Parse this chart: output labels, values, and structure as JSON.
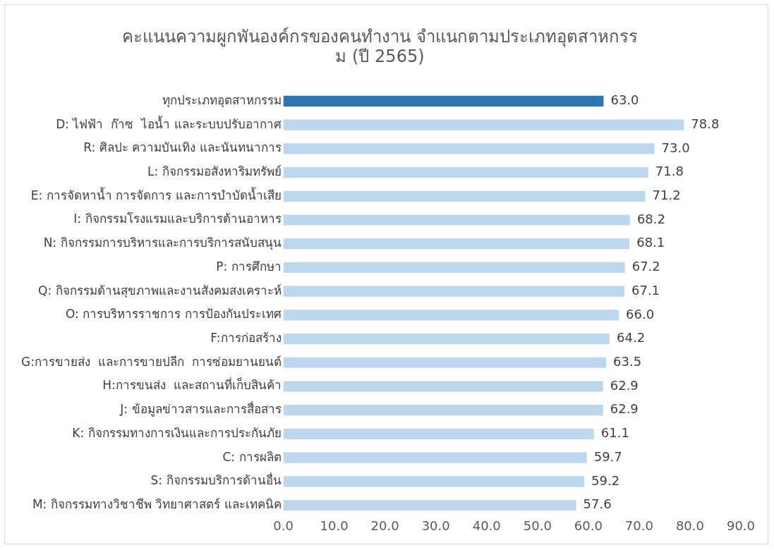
{
  "chart_data": {
    "type": "bar",
    "orientation": "horizontal",
    "title": "คะแนนความผูกพันองค์กรของคนทำงาน จำแนกตามประเภทอุตสาหกรรม (ปี 2565)",
    "categories": [
      "ทุกประเภทอุตสาหกรรม",
      "D: ไฟฟ้า  ก๊าซ  ไอน้ำ และระบบปรับอากาศ",
      "R: ศิลปะ ความบันเทิง และนันทนาการ",
      "L: กิจกรรมอสังหาริมทรัพย์",
      "E: การจัดหาน้ำ การจัดการ และการบำบัดน้ำเสีย",
      "I: กิจกรรมโรงแรมและบริการด้านอาหาร",
      "N: กิจกรรมการบริหารและการบริการสนับสนุน",
      "P: การศึกษา",
      "Q: กิจกรรมด้านสุขภาพและงานสังคมสงเคราะห์",
      "O: การบริหารราชการ การป้องกันประเทศ",
      "F:การก่อสร้าง",
      "G:การขายส่ง  และการขายปลีก  การซ่อมยานยนต์",
      "H:การขนส่ง  และสถานที่เก็บสินค้า",
      "J: ข้อมูลข่าวสารและการสื่อสาร",
      "K: กิจกรรมทางการเงินและการประกันภัย",
      "C: การผลิต",
      "S: กิจกรรมบริการด้านอื่น",
      "M: กิจกรรมทางวิชาชีพ วิทยาศาสตร์ และเทคนิค"
    ],
    "values": [
      63.0,
      78.8,
      73.0,
      71.8,
      71.2,
      68.2,
      68.1,
      67.2,
      67.1,
      66.0,
      64.2,
      63.5,
      62.9,
      62.9,
      61.1,
      59.7,
      59.2,
      57.6
    ],
    "value_labels": [
      "63.0",
      "78.8",
      "73.0",
      "71.8",
      "71.2",
      "68.2",
      "68.1",
      "67.2",
      "67.1",
      "66.0",
      "64.2",
      "63.5",
      "62.9",
      "62.9",
      "61.1",
      "59.7",
      "59.2",
      "57.6"
    ],
    "colors": [
      "#2e75b6",
      "#bdd7ee",
      "#bdd7ee",
      "#bdd7ee",
      "#bdd7ee",
      "#bdd7ee",
      "#bdd7ee",
      "#bdd7ee",
      "#bdd7ee",
      "#bdd7ee",
      "#bdd7ee",
      "#bdd7ee",
      "#bdd7ee",
      "#bdd7ee",
      "#bdd7ee",
      "#bdd7ee",
      "#bdd7ee",
      "#bdd7ee"
    ],
    "xlim": [
      0,
      90
    ],
    "xticks": [
      {
        "value": 0,
        "label": "0.0"
      },
      {
        "value": 10,
        "label": "10.0"
      },
      {
        "value": 20,
        "label": "20.0"
      },
      {
        "value": 30,
        "label": "30.0"
      },
      {
        "value": 40,
        "label": "40.0"
      },
      {
        "value": 50,
        "label": "50.0"
      },
      {
        "value": 60,
        "label": "60.0"
      },
      {
        "value": 70,
        "label": "70.0"
      },
      {
        "value": 80,
        "label": "80.0"
      },
      {
        "value": 90,
        "label": "90.0"
      }
    ],
    "grid": false,
    "legend": false
  }
}
